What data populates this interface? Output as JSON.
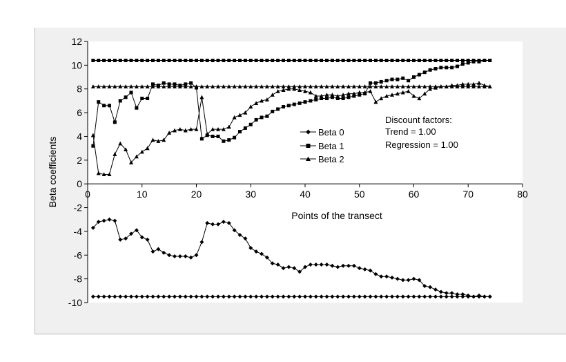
{
  "chart_data": {
    "type": "line",
    "xlabel": "Points of the transect",
    "ylabel": "Beta coefficients",
    "xlim": [
      0,
      80
    ],
    "ylim": [
      -10,
      12
    ],
    "xticks": [
      0,
      10,
      20,
      30,
      40,
      50,
      60,
      70,
      80
    ],
    "yticks": [
      12,
      10,
      8,
      6,
      4,
      2,
      0,
      -2,
      -4,
      -6,
      -8,
      -10
    ],
    "grid": false,
    "legend_position": "center",
    "annotation": {
      "heading": "Discount factors:",
      "trend": "Trend = 1.00",
      "regression": "Regression = 1.00"
    },
    "series": [
      {
        "name": "Beta 0",
        "marker": "diamond",
        "x": [
          1,
          2,
          3,
          4,
          5,
          6,
          7,
          8,
          9,
          10,
          11,
          12,
          13,
          14,
          15,
          16,
          17,
          18,
          19,
          20,
          21,
          22,
          23,
          24,
          25,
          26,
          27,
          28,
          29,
          30,
          31,
          32,
          33,
          34,
          35,
          36,
          37,
          38,
          39,
          40,
          41,
          42,
          43,
          44,
          45,
          46,
          47,
          48,
          49,
          50,
          51,
          52,
          53,
          54,
          55,
          56,
          57,
          58,
          59,
          60,
          61,
          62,
          63,
          64,
          65,
          66,
          67,
          68,
          69,
          70,
          71,
          72,
          73,
          74
        ],
        "values": [
          -3.7,
          -3.2,
          -3.1,
          -3.0,
          -3.1,
          -4.7,
          -4.6,
          -4.2,
          -3.9,
          -4.5,
          -4.7,
          -5.7,
          -5.5,
          -5.8,
          -6.0,
          -6.1,
          -6.1,
          -6.1,
          -6.2,
          -6.0,
          -4.9,
          -3.3,
          -3.4,
          -3.4,
          -3.2,
          -3.3,
          -3.9,
          -4.3,
          -4.6,
          -5.4,
          -5.7,
          -5.9,
          -6.2,
          -6.7,
          -6.8,
          -7.1,
          -7.0,
          -7.1,
          -7.4,
          -7.0,
          -6.8,
          -6.8,
          -6.8,
          -6.8,
          -6.9,
          -7.0,
          -6.9,
          -6.9,
          -6.9,
          -7.1,
          -7.2,
          -7.3,
          -7.6,
          -7.8,
          -7.8,
          -7.9,
          -8.0,
          -8.1,
          -8.1,
          -8.0,
          -8.1,
          -8.6,
          -8.7,
          -8.9,
          -9.1,
          -9.2,
          -9.2,
          -9.3,
          -9.3,
          -9.4,
          -9.5,
          -9.4,
          -9.5,
          -9.5
        ]
      },
      {
        "name": "Beta 1",
        "marker": "square",
        "x": [
          1,
          2,
          3,
          4,
          5,
          6,
          7,
          8,
          9,
          10,
          11,
          12,
          13,
          14,
          15,
          16,
          17,
          18,
          19,
          20,
          21,
          22,
          23,
          24,
          25,
          26,
          27,
          28,
          29,
          30,
          31,
          32,
          33,
          34,
          35,
          36,
          37,
          38,
          39,
          40,
          41,
          42,
          43,
          44,
          45,
          46,
          47,
          48,
          49,
          50,
          51,
          52,
          53,
          54,
          55,
          56,
          57,
          58,
          59,
          60,
          61,
          62,
          63,
          64,
          65,
          66,
          67,
          68,
          69,
          70,
          71,
          72,
          73,
          74
        ],
        "values": [
          3.2,
          6.9,
          6.6,
          6.6,
          5.2,
          7.0,
          7.3,
          7.7,
          6.4,
          7.2,
          7.2,
          8.4,
          8.3,
          8.5,
          8.4,
          8.4,
          8.3,
          8.4,
          8.5,
          8.1,
          3.8,
          4.1,
          4.0,
          4.0,
          3.6,
          3.7,
          3.9,
          4.4,
          4.7,
          5.0,
          5.4,
          5.6,
          5.7,
          6.1,
          6.3,
          6.5,
          6.6,
          6.7,
          6.8,
          6.9,
          7.0,
          7.1,
          7.2,
          7.2,
          7.3,
          7.2,
          7.2,
          7.3,
          7.4,
          7.5,
          7.6,
          8.5,
          8.5,
          8.6,
          8.7,
          8.8,
          8.8,
          8.9,
          8.7,
          9.0,
          9.2,
          9.4,
          9.6,
          9.7,
          9.8,
          9.8,
          9.8,
          9.9,
          10.1,
          10.2,
          10.3,
          10.3,
          10.4,
          10.4
        ]
      },
      {
        "name": "Beta 2",
        "marker": "triangle",
        "x": [
          1,
          2,
          3,
          4,
          5,
          6,
          7,
          8,
          9,
          10,
          11,
          12,
          13,
          14,
          15,
          16,
          17,
          18,
          19,
          20,
          21,
          22,
          23,
          24,
          25,
          26,
          27,
          28,
          29,
          30,
          31,
          32,
          33,
          34,
          35,
          36,
          37,
          38,
          39,
          40,
          41,
          42,
          43,
          44,
          45,
          46,
          47,
          48,
          49,
          50,
          51,
          52,
          53,
          54,
          55,
          56,
          57,
          58,
          59,
          60,
          61,
          62,
          63,
          64,
          65,
          66,
          67,
          68,
          69,
          70,
          71,
          72,
          73,
          74
        ],
        "values": [
          4.1,
          0.9,
          0.8,
          0.8,
          2.5,
          3.4,
          2.9,
          1.8,
          2.3,
          2.7,
          3.0,
          3.7,
          3.6,
          3.7,
          4.3,
          4.5,
          4.6,
          4.5,
          4.6,
          4.6,
          7.3,
          4.2,
          4.6,
          4.6,
          4.6,
          4.8,
          5.6,
          5.8,
          6.0,
          6.5,
          6.8,
          7.0,
          7.1,
          7.5,
          7.8,
          7.9,
          8.0,
          8.0,
          7.9,
          7.8,
          7.7,
          7.4,
          7.4,
          7.5,
          7.5,
          7.4,
          7.5,
          7.6,
          7.6,
          7.7,
          7.7,
          7.8,
          6.9,
          7.2,
          7.4,
          7.5,
          7.6,
          7.7,
          7.8,
          7.4,
          7.2,
          7.6,
          8.0,
          8.1,
          8.2,
          8.2,
          8.3,
          8.3,
          8.4,
          8.4,
          8.4,
          8.5,
          8.3,
          8.2
        ]
      },
      {
        "name": "",
        "marker": "diamond",
        "x": [
          1,
          2,
          3,
          4,
          5,
          6,
          7,
          8,
          9,
          10,
          11,
          12,
          13,
          14,
          15,
          16,
          17,
          18,
          19,
          20,
          21,
          22,
          23,
          24,
          25,
          26,
          27,
          28,
          29,
          30,
          31,
          32,
          33,
          34,
          35,
          36,
          37,
          38,
          39,
          40,
          41,
          42,
          43,
          44,
          45,
          46,
          47,
          48,
          49,
          50,
          51,
          52,
          53,
          54,
          55,
          56,
          57,
          58,
          59,
          60,
          61,
          62,
          63,
          64,
          65,
          66,
          67,
          68,
          69,
          70,
          71,
          72,
          73,
          74
        ],
        "values": [
          -9.5,
          -9.5,
          -9.5,
          -9.5,
          -9.5,
          -9.5,
          -9.5,
          -9.5,
          -9.5,
          -9.5,
          -9.5,
          -9.5,
          -9.5,
          -9.5,
          -9.5,
          -9.5,
          -9.5,
          -9.5,
          -9.5,
          -9.5,
          -9.5,
          -9.5,
          -9.5,
          -9.5,
          -9.5,
          -9.5,
          -9.5,
          -9.5,
          -9.5,
          -9.5,
          -9.5,
          -9.5,
          -9.5,
          -9.5,
          -9.5,
          -9.5,
          -9.5,
          -9.5,
          -9.5,
          -9.5,
          -9.5,
          -9.5,
          -9.5,
          -9.5,
          -9.5,
          -9.5,
          -9.5,
          -9.5,
          -9.5,
          -9.5,
          -9.5,
          -9.5,
          -9.5,
          -9.5,
          -9.5,
          -9.5,
          -9.5,
          -9.5,
          -9.5,
          -9.5,
          -9.5,
          -9.5,
          -9.5,
          -9.5,
          -9.5,
          -9.5,
          -9.5,
          -9.5,
          -9.5,
          -9.5,
          -9.5,
          -9.5,
          -9.5,
          -9.5
        ]
      },
      {
        "name": "",
        "marker": "square",
        "x": [
          1,
          2,
          3,
          4,
          5,
          6,
          7,
          8,
          9,
          10,
          11,
          12,
          13,
          14,
          15,
          16,
          17,
          18,
          19,
          20,
          21,
          22,
          23,
          24,
          25,
          26,
          27,
          28,
          29,
          30,
          31,
          32,
          33,
          34,
          35,
          36,
          37,
          38,
          39,
          40,
          41,
          42,
          43,
          44,
          45,
          46,
          47,
          48,
          49,
          50,
          51,
          52,
          53,
          54,
          55,
          56,
          57,
          58,
          59,
          60,
          61,
          62,
          63,
          64,
          65,
          66,
          67,
          68,
          69,
          70,
          71,
          72,
          73,
          74
        ],
        "values": [
          10.4,
          10.4,
          10.4,
          10.4,
          10.4,
          10.4,
          10.4,
          10.4,
          10.4,
          10.4,
          10.4,
          10.4,
          10.4,
          10.4,
          10.4,
          10.4,
          10.4,
          10.4,
          10.4,
          10.4,
          10.4,
          10.4,
          10.4,
          10.4,
          10.4,
          10.4,
          10.4,
          10.4,
          10.4,
          10.4,
          10.4,
          10.4,
          10.4,
          10.4,
          10.4,
          10.4,
          10.4,
          10.4,
          10.4,
          10.4,
          10.4,
          10.4,
          10.4,
          10.4,
          10.4,
          10.4,
          10.4,
          10.4,
          10.4,
          10.4,
          10.4,
          10.4,
          10.4,
          10.4,
          10.4,
          10.4,
          10.4,
          10.4,
          10.4,
          10.4,
          10.4,
          10.4,
          10.4,
          10.4,
          10.4,
          10.4,
          10.4,
          10.4,
          10.4,
          10.4,
          10.4,
          10.4,
          10.4,
          10.4
        ]
      },
      {
        "name": "",
        "marker": "triangle",
        "x": [
          1,
          2,
          3,
          4,
          5,
          6,
          7,
          8,
          9,
          10,
          11,
          12,
          13,
          14,
          15,
          16,
          17,
          18,
          19,
          20,
          21,
          22,
          23,
          24,
          25,
          26,
          27,
          28,
          29,
          30,
          31,
          32,
          33,
          34,
          35,
          36,
          37,
          38,
          39,
          40,
          41,
          42,
          43,
          44,
          45,
          46,
          47,
          48,
          49,
          50,
          51,
          52,
          53,
          54,
          55,
          56,
          57,
          58,
          59,
          60,
          61,
          62,
          63,
          64,
          65,
          66,
          67,
          68,
          69,
          70,
          71,
          72,
          73,
          74
        ],
        "values": [
          8.2,
          8.2,
          8.2,
          8.2,
          8.2,
          8.2,
          8.2,
          8.2,
          8.2,
          8.2,
          8.2,
          8.2,
          8.2,
          8.2,
          8.2,
          8.2,
          8.2,
          8.2,
          8.2,
          8.2,
          8.2,
          8.2,
          8.2,
          8.2,
          8.2,
          8.2,
          8.2,
          8.2,
          8.2,
          8.2,
          8.2,
          8.2,
          8.2,
          8.2,
          8.2,
          8.2,
          8.2,
          8.2,
          8.2,
          8.2,
          8.2,
          8.2,
          8.2,
          8.2,
          8.2,
          8.2,
          8.2,
          8.2,
          8.2,
          8.2,
          8.2,
          8.2,
          8.2,
          8.2,
          8.2,
          8.2,
          8.2,
          8.2,
          8.2,
          8.2,
          8.2,
          8.2,
          8.2,
          8.2,
          8.2,
          8.2,
          8.2,
          8.2,
          8.2,
          8.2,
          8.2,
          8.2,
          8.2,
          8.2
        ]
      }
    ]
  }
}
